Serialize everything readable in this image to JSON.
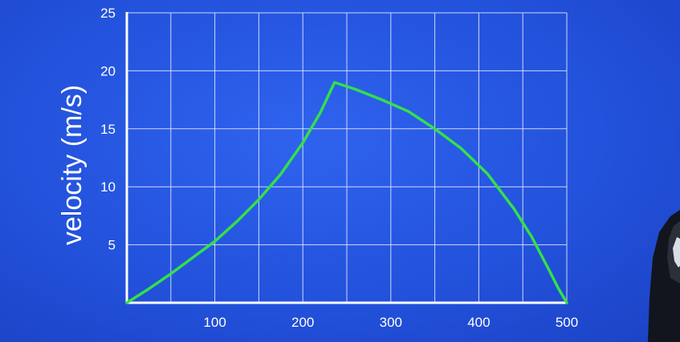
{
  "chart_data": {
    "type": "line",
    "title": "",
    "xlabel": "",
    "ylabel": "velocity (m/s)",
    "xlim": [
      0,
      500
    ],
    "ylim": [
      0,
      25
    ],
    "x_ticks": [
      100,
      200,
      300,
      400,
      500
    ],
    "y_ticks": [
      5,
      10,
      15,
      20,
      25
    ],
    "x_grid_step": 50,
    "y_grid_step": 5,
    "grid": true,
    "colors": {
      "line": "#33e04a",
      "grid": "#dfe6ff",
      "axis": "#ffffff",
      "text": "#ffffff"
    },
    "series": [
      {
        "x": [
          0,
          25,
          50,
          75,
          100,
          125,
          150,
          175,
          200,
          220,
          236,
          260,
          290,
          320,
          350,
          380,
          410,
          440,
          460,
          480,
          490,
          500
        ],
        "y": [
          0,
          1.2,
          2.5,
          3.9,
          5.3,
          7.0,
          8.9,
          11.1,
          13.8,
          16.4,
          19.0,
          18.4,
          17.5,
          16.5,
          15.0,
          13.3,
          11.1,
          8.1,
          5.7,
          2.8,
          1.3,
          0
        ]
      }
    ]
  }
}
